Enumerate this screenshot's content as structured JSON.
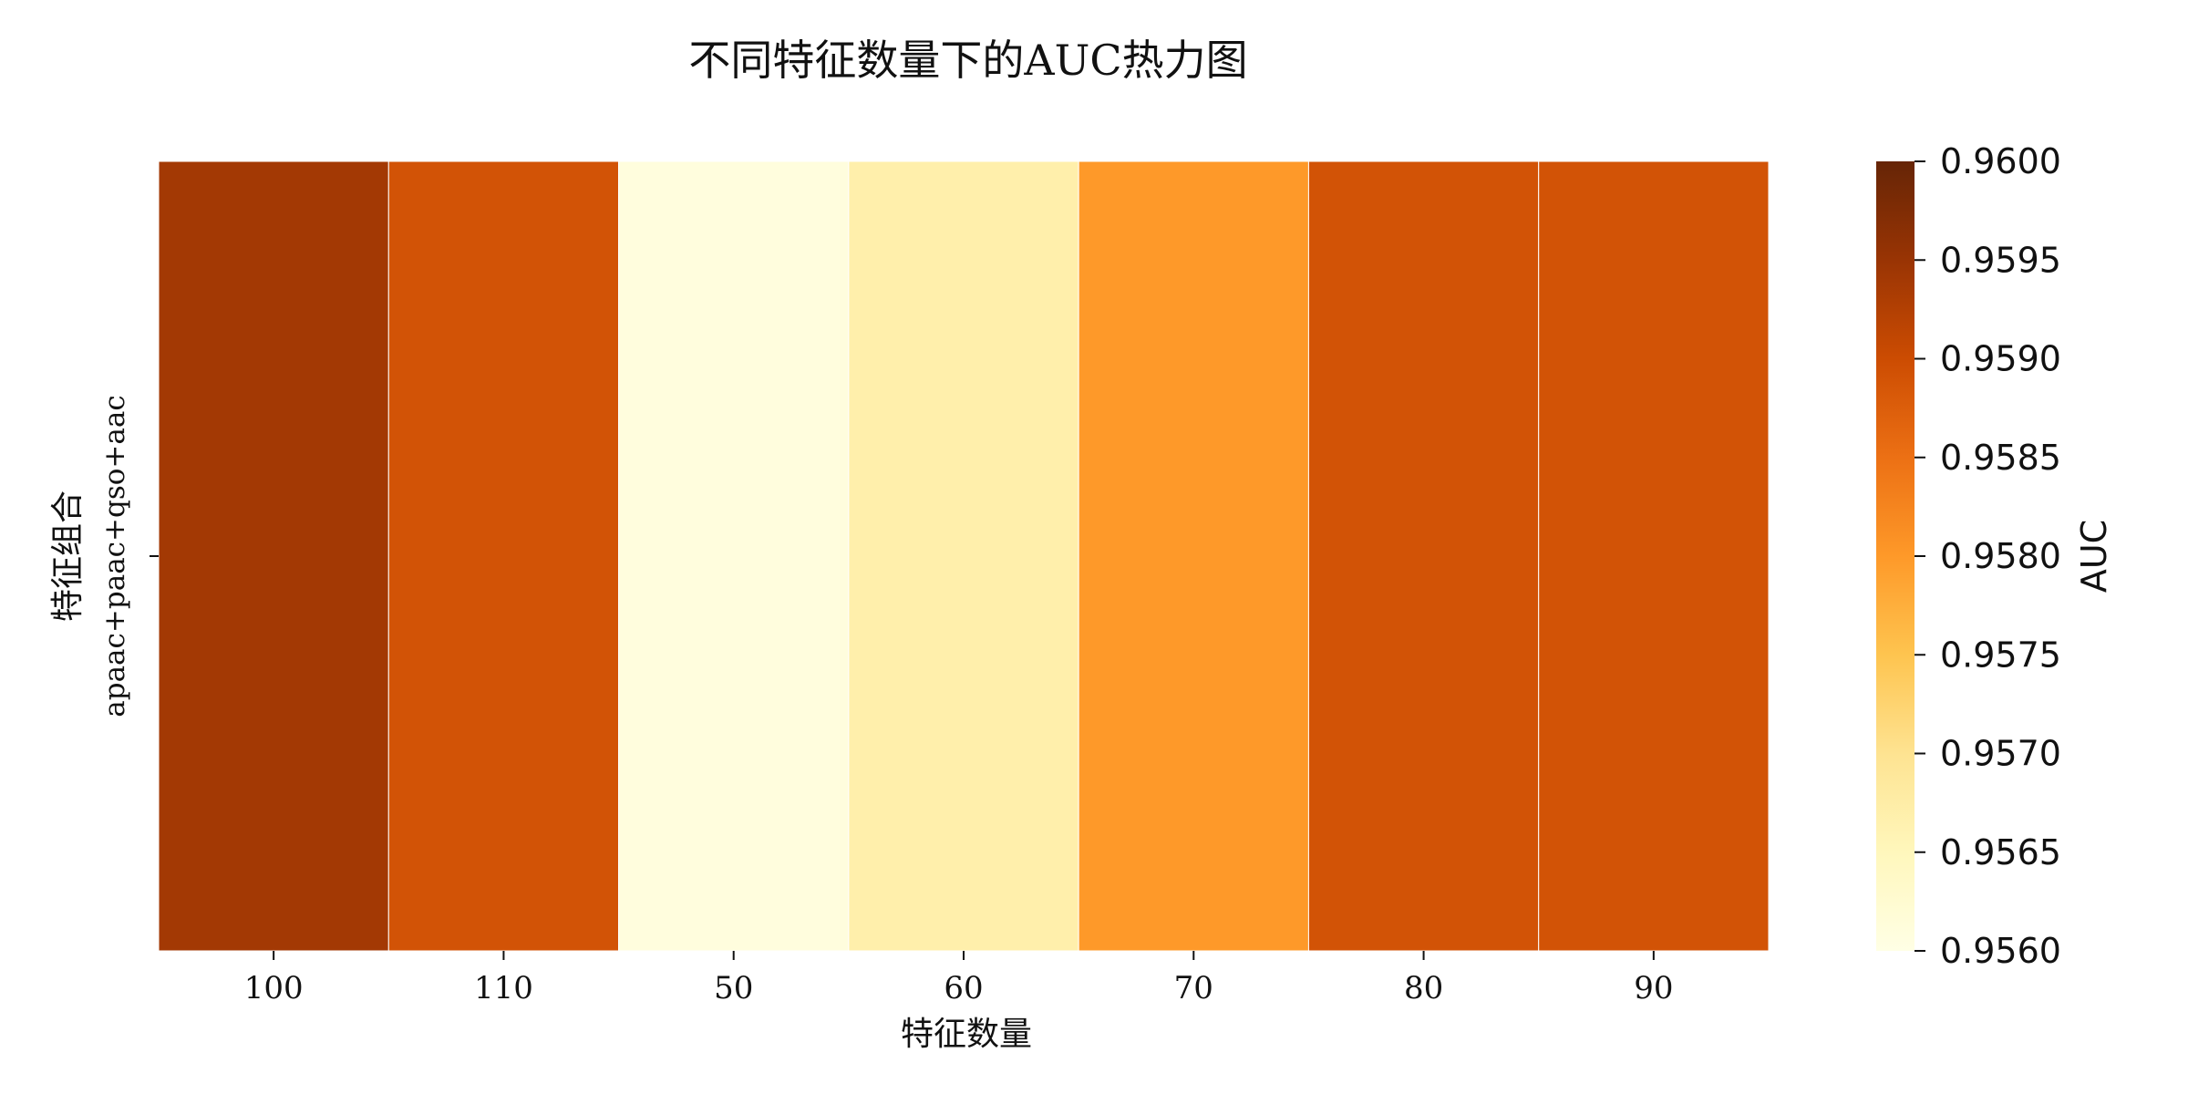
{
  "chart_data": {
    "type": "heatmap",
    "title": "不同特征数量下的AUC热力图",
    "xlabel": "特征数量",
    "ylabel": "特征组合",
    "x_categories": [
      "100",
      "110",
      "50",
      "60",
      "70",
      "80",
      "90"
    ],
    "y_categories": [
      "apaac+paac+qso+aac"
    ],
    "values": [
      [
        0.9594,
        0.9589,
        0.9561,
        0.9567,
        0.958,
        0.9589,
        0.9589
      ]
    ],
    "colorbar": {
      "label": "AUC",
      "vmin": 0.956,
      "vmax": 0.96,
      "ticks": [
        "0.9560",
        "0.9565",
        "0.9570",
        "0.9575",
        "0.9580",
        "0.9585",
        "0.9590",
        "0.9595",
        "0.9600"
      ]
    },
    "colormap": [
      "#ffffe5",
      "#fff7bc",
      "#fee391",
      "#fec44f",
      "#fe9929",
      "#ec7014",
      "#cc4c02",
      "#993404",
      "#662506"
    ],
    "grid": false,
    "legend": "none"
  }
}
